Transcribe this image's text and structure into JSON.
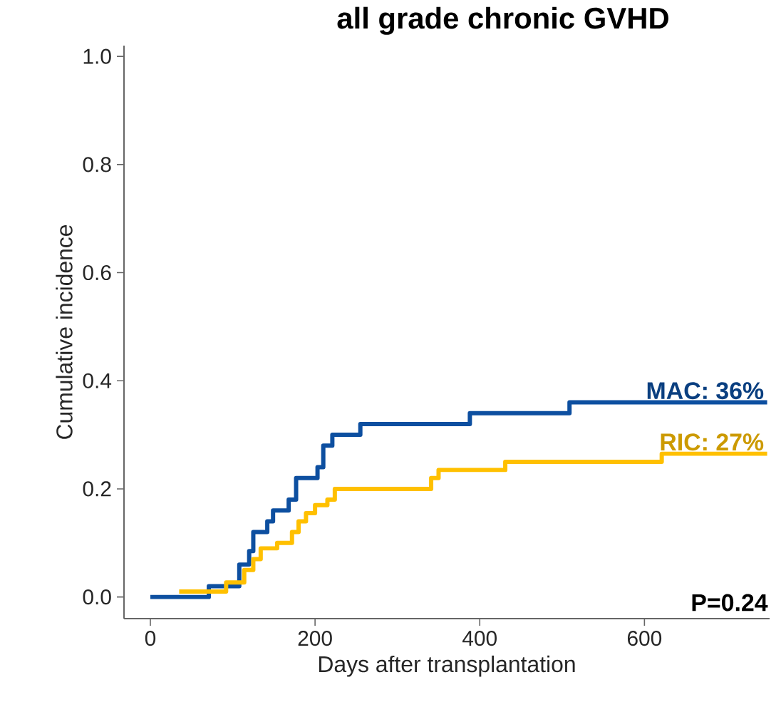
{
  "chart_data": {
    "type": "step",
    "title": "all grade chronic GVHD",
    "xlabel": "Days after transplantation",
    "ylabel": "Cumulative incidence",
    "xlim": [
      -32,
      752
    ],
    "xticks": [
      0,
      200,
      400,
      600
    ],
    "ylim": [
      -0.04,
      1.02
    ],
    "yticks": [
      {
        "value": 0,
        "label": "0.0"
      },
      {
        "value": 0.2,
        "label": "0.2"
      },
      {
        "value": 0.4,
        "label": "0.4"
      },
      {
        "value": 0.6,
        "label": "0.6"
      },
      {
        "value": 0.8,
        "label": "0.8"
      },
      {
        "value": 1,
        "label": "1.0"
      }
    ],
    "grid": false,
    "series": [
      {
        "name": "MAC: 36%",
        "color": "#0d4fa0",
        "x": [
          0,
          71,
          108,
          120,
          125,
          142,
          149,
          168,
          177,
          203,
          210,
          221,
          255,
          388,
          509,
          749
        ],
        "values": [
          0,
          0.02,
          0.06,
          0.085,
          0.12,
          0.14,
          0.16,
          0.18,
          0.22,
          0.24,
          0.28,
          0.3,
          0.32,
          0.34,
          0.36,
          0.36
        ]
      },
      {
        "name": "RIC: 27%",
        "color": "#ffc000",
        "x": [
          35,
          92,
          114,
          125,
          134,
          154,
          172,
          180,
          189,
          200,
          215,
          224,
          341,
          350,
          431,
          621,
          749
        ],
        "values": [
          0.01,
          0.027,
          0.05,
          0.07,
          0.09,
          0.1,
          0.12,
          0.14,
          0.155,
          0.17,
          0.18,
          0.2,
          0.22,
          0.235,
          0.25,
          0.265,
          0.265
        ]
      }
    ],
    "annotations": [
      "P=0.24"
    ]
  }
}
